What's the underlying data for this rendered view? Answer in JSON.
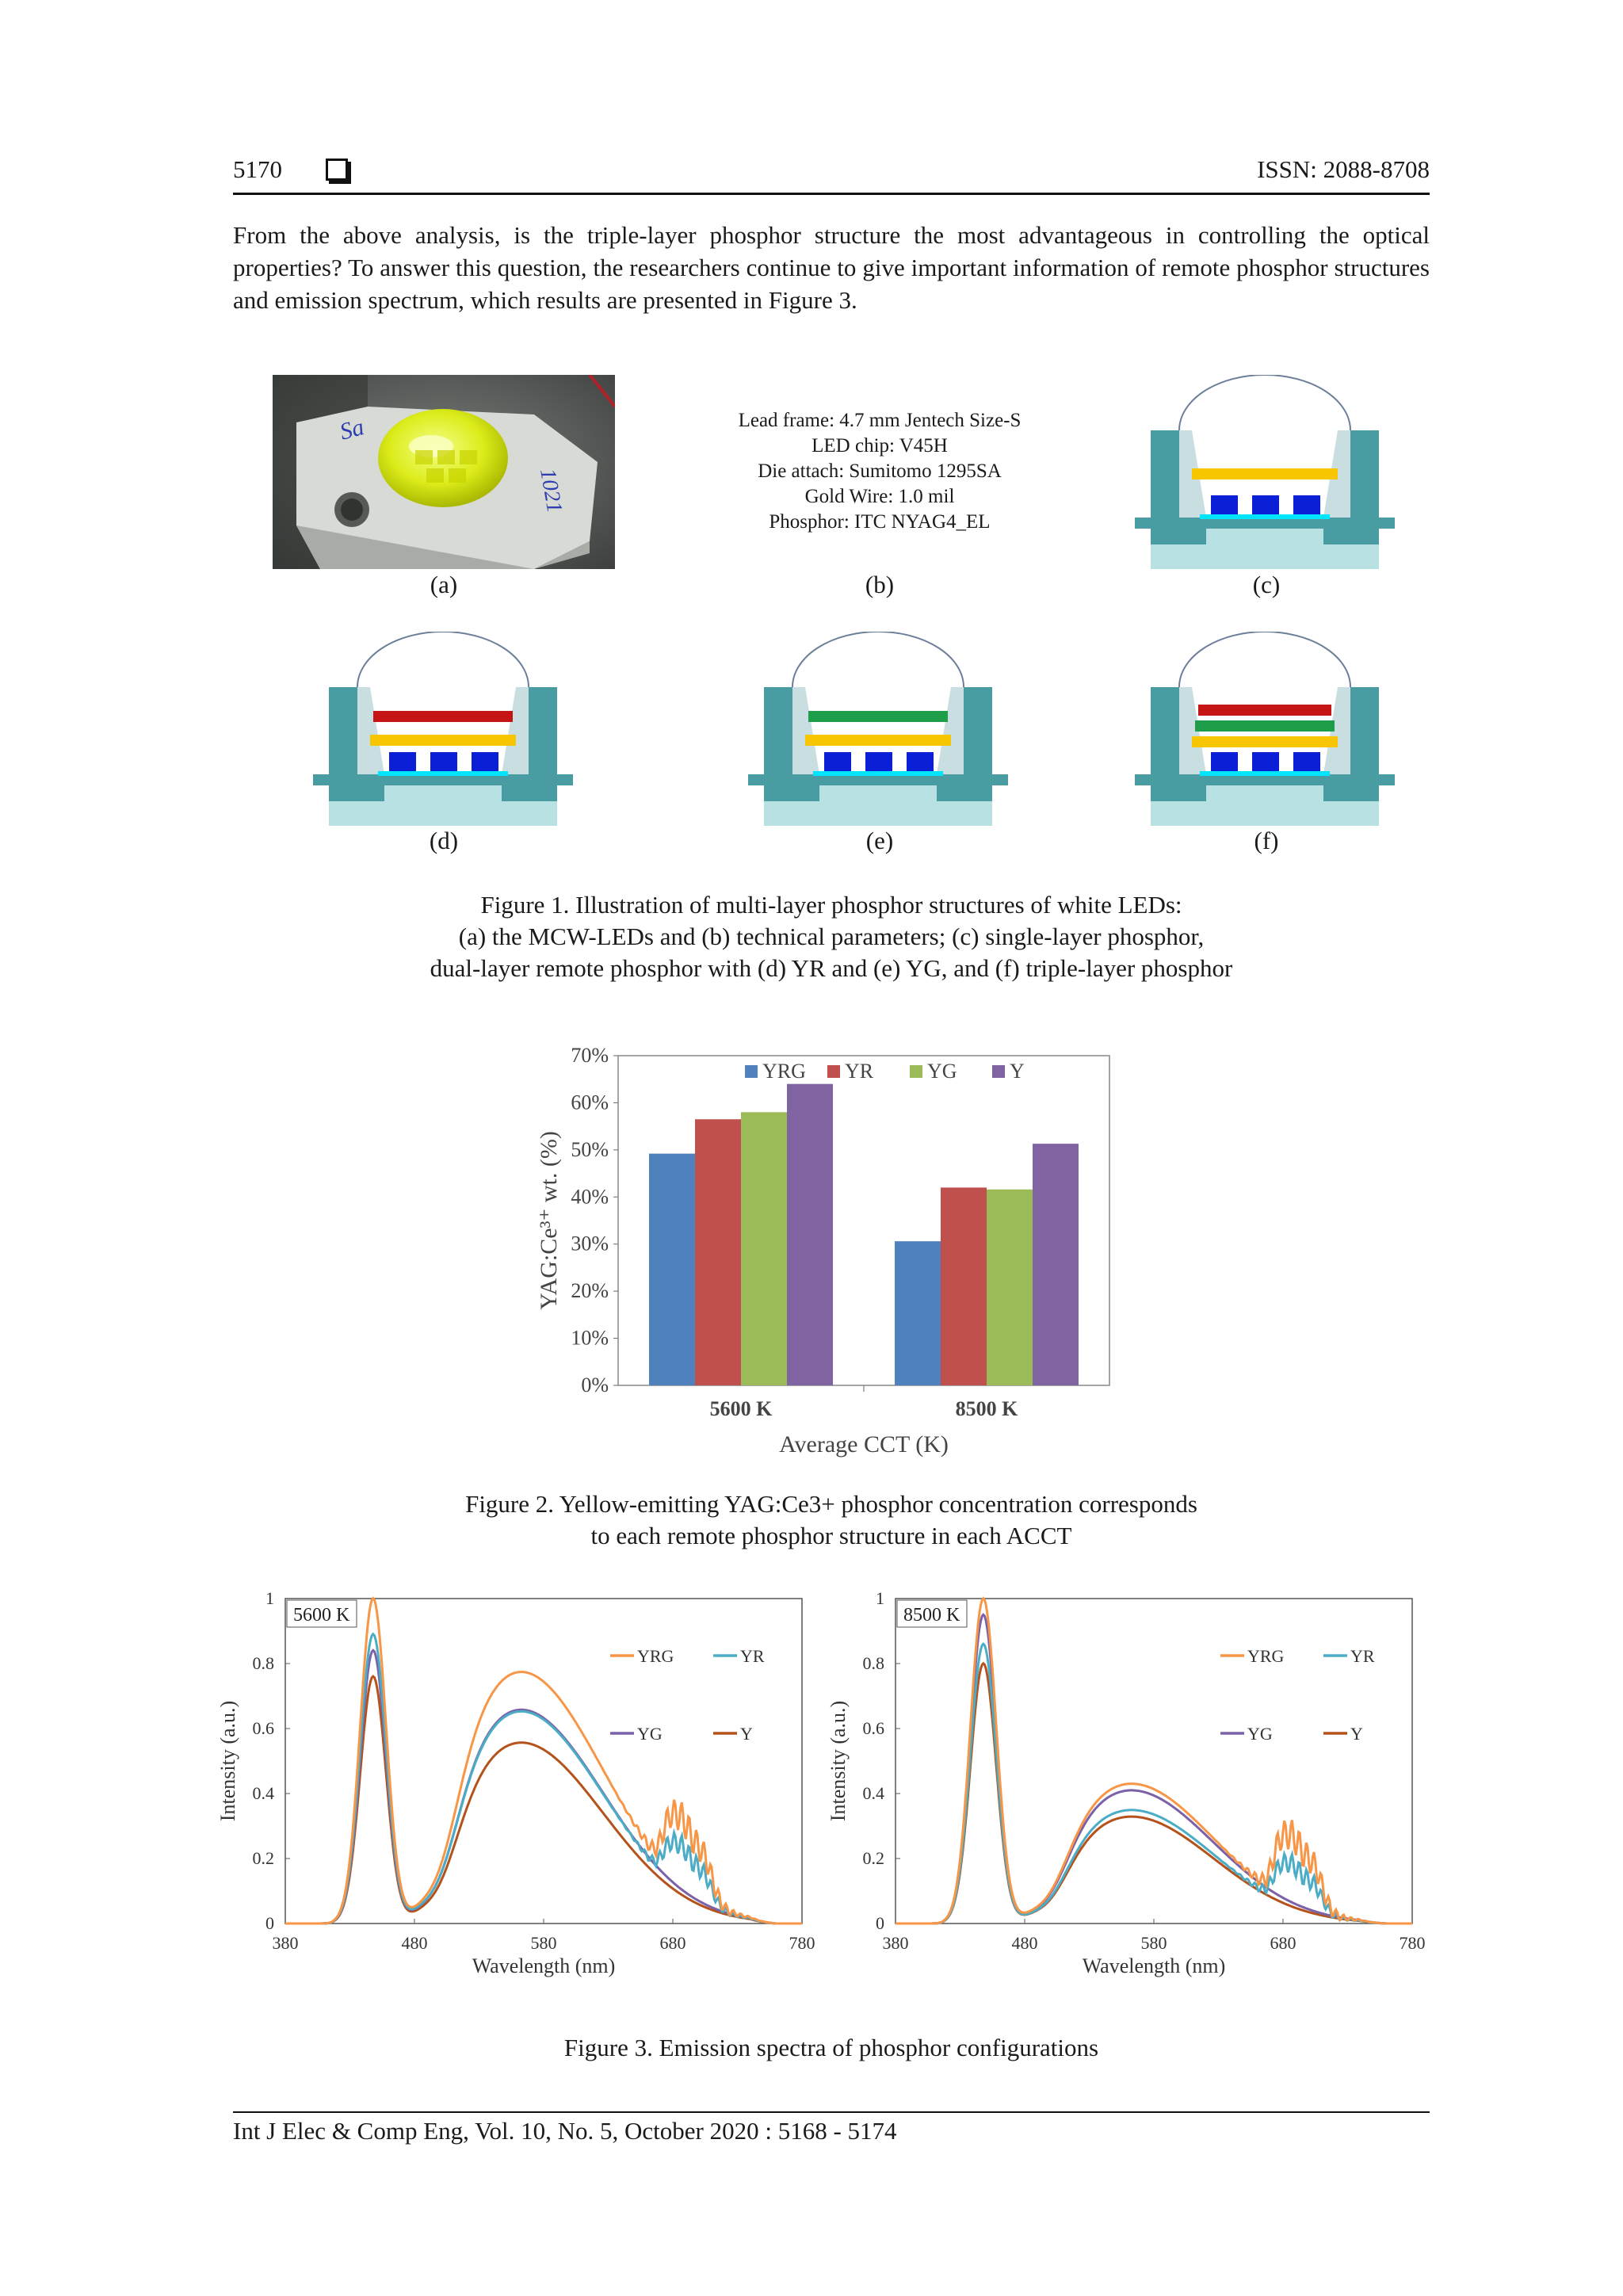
{
  "header": {
    "page_number": "5170",
    "issn": "ISSN: 2088-8708"
  },
  "intro": "From the above analysis, is the triple-layer phosphor structure the most advantageous in controlling the optical properties? To answer this question, the researchers continue to give important information of remote phosphor structures and emission spectrum, which results are presented in Figure 3.",
  "figure1": {
    "specs": [
      "Lead frame: 4.7 mm Jentech Size-S",
      "LED chip: V45H",
      "Die attach: Sumitomo 1295SA",
      "Gold Wire: 1.0 mil",
      "Phosphor: ITC NYAG4_EL"
    ],
    "labels": {
      "a": "(a)",
      "b": "(b)",
      "c": "(c)",
      "d": "(d)",
      "e": "(e)",
      "f": "(f)"
    },
    "photo_marks": [
      "Sa",
      "1021"
    ],
    "caption": [
      "Figure 1. Illustration of multi-layer phosphor structures of white LEDs:",
      "(a) the MCW-LEDs and (b) technical parameters; (c) single-layer phosphor,",
      "dual-layer remote phosphor with (d) YR and (e) YG, and (f) triple-layer phosphor"
    ],
    "colors": {
      "yellow": "#f7c600",
      "red": "#c41414",
      "green": "#1e9e4a",
      "teal": "#4a9ca3",
      "chip": "#0b1fd6"
    }
  },
  "figure2": {
    "caption": [
      "Figure 2. Yellow-emitting YAG:Ce3+ phosphor concentration corresponds",
      "to each remote phosphor structure in each ACCT"
    ]
  },
  "figure3": {
    "caption": "Figure 3. Emission spectra of phosphor configurations"
  },
  "footer": "Int J Elec & Comp Eng, Vol. 10, No. 5, October 2020 :  5168 - 5174",
  "chart_data": [
    {
      "type": "bar",
      "categories": [
        "5600 K",
        "8500 K"
      ],
      "series": [
        {
          "name": "YRG",
          "color": "#4f81bd",
          "values": [
            49.2,
            30.6
          ]
        },
        {
          "name": "YR",
          "color": "#c0504d",
          "values": [
            56.5,
            42.0
          ]
        },
        {
          "name": "YG",
          "color": "#9bbb59",
          "values": [
            58.0,
            41.6
          ]
        },
        {
          "name": "Y",
          "color": "#8064a2",
          "values": [
            64.0,
            51.3
          ]
        }
      ],
      "ylim": [
        0,
        70
      ],
      "yticks": [
        "0%",
        "10%",
        "20%",
        "30%",
        "40%",
        "50%",
        "60%",
        "70%"
      ],
      "xlabel": "Average CCT (K)",
      "ylabel": "YAG:Ce³⁺ wt. (%)",
      "legend": "top"
    },
    {
      "type": "line",
      "annotation": "5600 K",
      "xlim": [
        380,
        780
      ],
      "ylim": [
        0,
        1
      ],
      "xticks": [
        "380",
        "480",
        "580",
        "680",
        "780"
      ],
      "yticks": [
        "0",
        "0.2",
        "0.4",
        "0.6",
        "0.8",
        "1"
      ],
      "xlabel": "Wavelength (nm)",
      "ylabel": "Intensity (a.u.)",
      "legend": "top-right",
      "series": [
        {
          "name": "YRG",
          "color": "#f79646",
          "blue_peak": 1.0,
          "valley": 0.11,
          "broad_peak": 0.765,
          "red_peak": 0.27
        },
        {
          "name": "YR",
          "color": "#4bacc6",
          "blue_peak": 0.89,
          "valley": 0.1,
          "broad_peak": 0.645,
          "red_peak": 0.18
        },
        {
          "name": "YG",
          "color": "#7b62a8",
          "blue_peak": 0.84,
          "valley": 0.09,
          "broad_peak": 0.65,
          "red_peak": 0.0
        },
        {
          "name": "Y",
          "color": "#b5521b",
          "blue_peak": 0.76,
          "valley": 0.08,
          "broad_peak": 0.55,
          "red_peak": 0.0
        }
      ]
    },
    {
      "type": "line",
      "annotation": "8500 K",
      "xlim": [
        380,
        780
      ],
      "ylim": [
        0,
        1
      ],
      "xticks": [
        "380",
        "480",
        "580",
        "680",
        "780"
      ],
      "yticks": [
        "0",
        "0.2",
        "0.4",
        "0.6",
        "0.8",
        "1"
      ],
      "xlabel": "Wavelength (nm)",
      "ylabel": "Intensity (a.u.)",
      "legend": "top-right",
      "series": [
        {
          "name": "YRG",
          "color": "#f79646",
          "blue_peak": 1.0,
          "valley": 0.07,
          "broad_peak": 0.425,
          "red_peak": 0.27
        },
        {
          "name": "YR",
          "color": "#4bacc6",
          "blue_peak": 0.86,
          "valley": 0.06,
          "broad_peak": 0.345,
          "red_peak": 0.17
        },
        {
          "name": "YG",
          "color": "#7b62a8",
          "blue_peak": 0.95,
          "valley": 0.07,
          "broad_peak": 0.405,
          "red_peak": 0.0
        },
        {
          "name": "Y",
          "color": "#b5521b",
          "blue_peak": 0.8,
          "valley": 0.06,
          "broad_peak": 0.325,
          "red_peak": 0.0
        }
      ]
    }
  ]
}
